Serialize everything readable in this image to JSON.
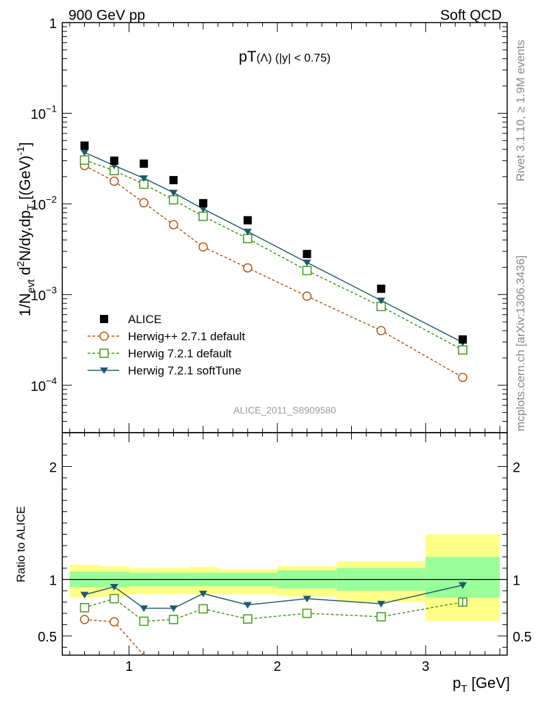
{
  "header": {
    "left": "900 GeV pp",
    "right": "Soft QCD"
  },
  "side_labels": {
    "rivet": "Rivet 3.1.10, ≥ 1.9M events",
    "mcplots": "mcplots.cern.ch [arXiv:1306.3436]"
  },
  "colors": {
    "alice": "#000000",
    "herwigpp": "#b8560c",
    "herwig721": "#3c9a14",
    "softtune": "#1e5a6e",
    "band_inner": "#99ff99",
    "band_outer": "#ffff88",
    "watermark": "#999999"
  },
  "chart_data": [
    {
      "type": "line",
      "title": "pT(Λ) (|y| < 0.75)",
      "title_main": "pT",
      "title_rest": "(Λ) (|y| < 0.75)",
      "watermark": "ALICE_2011_S8909580",
      "ylabel": "1/N_evt d²N/dy,dp_T [(GeV)⁻¹]",
      "ylabel_parts": {
        "a": "1/N",
        "a_sub": "evt",
        "b": " d",
        "b_sup": "2",
        "c": "N/dy,dp",
        "c_sub": "T",
        "d": " [(GeV)",
        "d_sup": "-1",
        "e": "]"
      },
      "yscale": "log",
      "ylim": [
        3e-05,
        1
      ],
      "xlim": [
        0.55,
        3.55
      ],
      "yticks": [
        {
          "v": 1,
          "base": "1",
          "exp": ""
        },
        {
          "v": 0.1,
          "base": "10",
          "exp": "−1"
        },
        {
          "v": 0.01,
          "base": "10",
          "exp": "−2"
        },
        {
          "v": 0.001,
          "base": "10",
          "exp": "−3"
        },
        {
          "v": 0.0001,
          "base": "10",
          "exp": "−4"
        }
      ],
      "legend_position": "bottom-left",
      "x": [
        0.7,
        0.9,
        1.1,
        1.3,
        1.5,
        1.8,
        2.2,
        2.7,
        3.25
      ],
      "series": [
        {
          "name": "ALICE",
          "key": "alice",
          "style": "marker-square",
          "values": [
            0.044,
            0.03,
            0.0278,
            0.0183,
            0.0102,
            0.0066,
            0.0028,
            0.00116,
            0.00032
          ]
        },
        {
          "name": "Herwig++ 2.7.1 default",
          "key": "herwigpp",
          "style": "dashed-circle",
          "values": [
            0.0265,
            0.0178,
            0.0103,
            0.0059,
            0.00335,
            0.00197,
            0.00096,
            0.0004,
            0.000122
          ]
        },
        {
          "name": "Herwig 7.2.1 default",
          "key": "herwig721",
          "style": "dashed-square",
          "values": [
            0.0305,
            0.0233,
            0.0165,
            0.0111,
            0.0073,
            0.00415,
            0.00184,
            0.00074,
            0.000245
          ]
        },
        {
          "name": "Herwig 7.2.1 softTune",
          "key": "softtune",
          "style": "solid-triangle",
          "values": [
            0.037,
            0.0265,
            0.0192,
            0.0133,
            0.0088,
            0.00495,
            0.00226,
            0.00086,
            0.000296
          ]
        }
      ]
    },
    {
      "type": "line",
      "ylabel": "Ratio to ALICE",
      "xlabel_main": "p",
      "xlabel_sub": "T",
      "xlabel_rest": " [GeV]",
      "ylim": [
        0.33,
        2.3
      ],
      "xlim": [
        0.55,
        3.55
      ],
      "xticks": [
        1,
        2,
        3
      ],
      "yticks": [
        0.5,
        1,
        2
      ],
      "ytick_labels": [
        "0.5",
        "1",
        "2"
      ],
      "bins": [
        {
          "lo": 0.6,
          "hi": 0.8,
          "inner": [
            0.93,
            1.07
          ],
          "outer": [
            0.84,
            1.13
          ]
        },
        {
          "lo": 0.8,
          "hi": 1.0,
          "inner": [
            0.93,
            1.07
          ],
          "outer": [
            0.85,
            1.12
          ]
        },
        {
          "lo": 1.0,
          "hi": 1.2,
          "inner": [
            0.94,
            1.06
          ],
          "outer": [
            0.87,
            1.1
          ]
        },
        {
          "lo": 1.2,
          "hi": 1.4,
          "inner": [
            0.94,
            1.06
          ],
          "outer": [
            0.87,
            1.1
          ]
        },
        {
          "lo": 1.4,
          "hi": 1.6,
          "inner": [
            0.94,
            1.06
          ],
          "outer": [
            0.87,
            1.11
          ]
        },
        {
          "lo": 1.6,
          "hi": 2.0,
          "inner": [
            0.94,
            1.06
          ],
          "outer": [
            0.87,
            1.09
          ]
        },
        {
          "lo": 2.0,
          "hi": 2.4,
          "inner": [
            0.92,
            1.08
          ],
          "outer": [
            0.85,
            1.12
          ]
        },
        {
          "lo": 2.4,
          "hi": 3.0,
          "inner": [
            0.9,
            1.1
          ],
          "outer": [
            0.8,
            1.16
          ]
        },
        {
          "lo": 3.0,
          "hi": 3.5,
          "inner": [
            0.84,
            1.2
          ],
          "outer": [
            0.63,
            1.4
          ]
        }
      ],
      "x": [
        0.7,
        0.9,
        1.1,
        1.3,
        1.5,
        1.8,
        2.2,
        2.7,
        3.25
      ],
      "series": [
        {
          "name": "Herwig++ 2.7.1 default",
          "key": "herwigpp",
          "style": "dashed-circle",
          "values": [
            0.645,
            0.625,
            0.285,
            null,
            null,
            null,
            null,
            null,
            null
          ]
        },
        {
          "name": "Herwig 7.2.1 default",
          "key": "herwig721",
          "style": "dashed-square",
          "values": [
            0.75,
            0.83,
            0.63,
            0.645,
            0.74,
            0.65,
            0.7,
            0.67,
            0.8
          ]
        },
        {
          "name": "Herwig 7.2.1 softTune",
          "key": "softtune",
          "style": "solid-triangle",
          "values": [
            0.865,
            0.935,
            0.745,
            0.745,
            0.875,
            0.775,
            0.83,
            0.785,
            0.95
          ]
        }
      ]
    }
  ]
}
